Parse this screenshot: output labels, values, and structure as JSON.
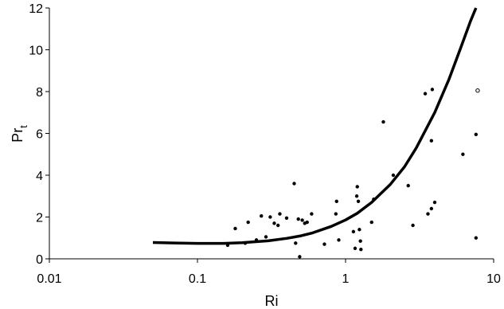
{
  "chart_data": {
    "type": "scatter",
    "xlabel": "Ri",
    "ylabel_main": "Pr",
    "ylabel_sub": "t",
    "x_scale": "log",
    "xlim": [
      0.01,
      10
    ],
    "ylim": [
      0,
      12
    ],
    "x_ticks": [
      0.01,
      0.1,
      1,
      10
    ],
    "x_tick_labels": [
      "0.01",
      "0.1",
      "1",
      "10"
    ],
    "y_ticks": [
      0,
      2,
      4,
      6,
      8,
      10,
      12
    ],
    "y_tick_labels": [
      "0",
      "2",
      "4",
      "6",
      "8",
      "10",
      "12"
    ],
    "grid": false,
    "series": [
      {
        "kind": "points",
        "marker": "filled-circle",
        "points": [
          {
            "x": 0.16,
            "y": 0.65
          },
          {
            "x": 0.18,
            "y": 1.45
          },
          {
            "x": 0.21,
            "y": 0.75
          },
          {
            "x": 0.22,
            "y": 1.75
          },
          {
            "x": 0.25,
            "y": 0.9
          },
          {
            "x": 0.27,
            "y": 2.05
          },
          {
            "x": 0.29,
            "y": 1.05
          },
          {
            "x": 0.31,
            "y": 2.0
          },
          {
            "x": 0.33,
            "y": 1.7
          },
          {
            "x": 0.35,
            "y": 1.6
          },
          {
            "x": 0.36,
            "y": 2.15
          },
          {
            "x": 0.4,
            "y": 1.95
          },
          {
            "x": 0.45,
            "y": 3.6
          },
          {
            "x": 0.46,
            "y": 0.75
          },
          {
            "x": 0.48,
            "y": 1.9
          },
          {
            "x": 0.49,
            "y": 0.1
          },
          {
            "x": 0.51,
            "y": 1.85
          },
          {
            "x": 0.53,
            "y": 1.7
          },
          {
            "x": 0.55,
            "y": 1.75
          },
          {
            "x": 0.59,
            "y": 2.15
          },
          {
            "x": 0.72,
            "y": 0.7
          },
          {
            "x": 0.86,
            "y": 2.15
          },
          {
            "x": 0.87,
            "y": 2.75
          },
          {
            "x": 0.9,
            "y": 0.9
          },
          {
            "x": 1.13,
            "y": 1.3
          },
          {
            "x": 1.16,
            "y": 0.5
          },
          {
            "x": 1.19,
            "y": 3.0
          },
          {
            "x": 1.2,
            "y": 3.45
          },
          {
            "x": 1.22,
            "y": 2.75
          },
          {
            "x": 1.24,
            "y": 1.4
          },
          {
            "x": 1.26,
            "y": 0.85
          },
          {
            "x": 1.27,
            "y": 0.45
          },
          {
            "x": 1.5,
            "y": 1.75
          },
          {
            "x": 1.55,
            "y": 2.85
          },
          {
            "x": 1.8,
            "y": 6.55
          },
          {
            "x": 2.1,
            "y": 4.0
          },
          {
            "x": 2.65,
            "y": 3.5
          },
          {
            "x": 2.85,
            "y": 1.6
          },
          {
            "x": 3.45,
            "y": 7.9
          },
          {
            "x": 3.6,
            "y": 2.15
          },
          {
            "x": 3.8,
            "y": 2.4
          },
          {
            "x": 3.85,
            "y": 8.1
          },
          {
            "x": 3.8,
            "y": 5.65
          },
          {
            "x": 4.0,
            "y": 2.7
          },
          {
            "x": 6.2,
            "y": 5.0
          },
          {
            "x": 7.6,
            "y": 5.95
          },
          {
            "x": 7.6,
            "y": 1.0
          }
        ]
      },
      {
        "kind": "points",
        "marker": "open-circle",
        "points": [
          {
            "x": 7.8,
            "y": 8.05
          }
        ]
      },
      {
        "kind": "line",
        "style": "thick-black",
        "points": [
          {
            "x": 0.05,
            "y": 0.78
          },
          {
            "x": 0.07,
            "y": 0.76
          },
          {
            "x": 0.1,
            "y": 0.74
          },
          {
            "x": 0.15,
            "y": 0.74
          },
          {
            "x": 0.2,
            "y": 0.77
          },
          {
            "x": 0.3,
            "y": 0.86
          },
          {
            "x": 0.4,
            "y": 0.98
          },
          {
            "x": 0.5,
            "y": 1.1
          },
          {
            "x": 0.6,
            "y": 1.24
          },
          {
            "x": 0.8,
            "y": 1.55
          },
          {
            "x": 1.0,
            "y": 1.86
          },
          {
            "x": 1.2,
            "y": 2.18
          },
          {
            "x": 1.5,
            "y": 2.7
          },
          {
            "x": 2.0,
            "y": 3.55
          },
          {
            "x": 2.5,
            "y": 4.4
          },
          {
            "x": 3.0,
            "y": 5.3
          },
          {
            "x": 4.0,
            "y": 7.0
          },
          {
            "x": 5.0,
            "y": 8.6
          },
          {
            "x": 6.0,
            "y": 10.1
          },
          {
            "x": 7.0,
            "y": 11.4
          },
          {
            "x": 7.6,
            "y": 12.0
          }
        ]
      }
    ]
  }
}
